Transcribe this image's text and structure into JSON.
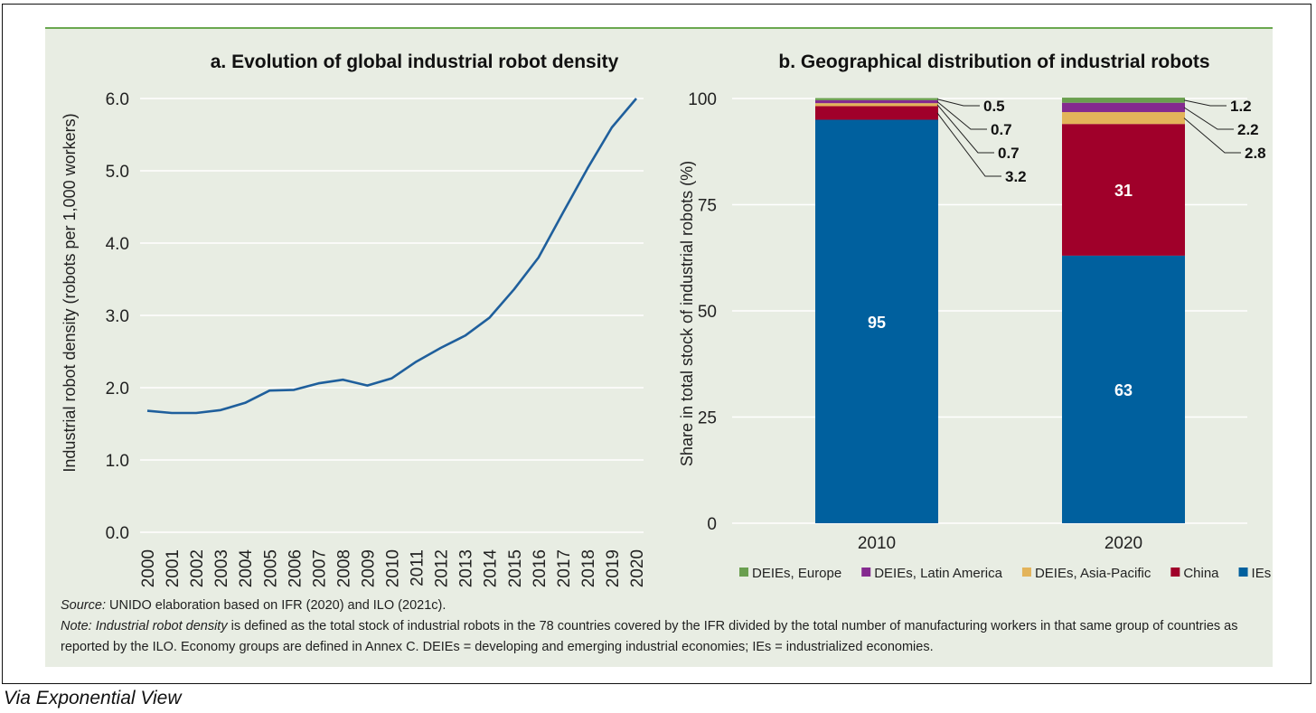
{
  "chart_data": [
    {
      "type": "line",
      "title": "a. Evolution of global industrial robot density",
      "ylabel": "Industrial robot density (robots per 1,000 workers)",
      "xlabel": "",
      "ylim": [
        0,
        6
      ],
      "yticks": [
        "0.0",
        "1.0",
        "2.0",
        "3.0",
        "4.0",
        "5.0",
        "6.0"
      ],
      "x": [
        "2000",
        "2001",
        "2002",
        "2003",
        "2004",
        "2005",
        "2006",
        "2007",
        "2008",
        "2009",
        "2010",
        "2011",
        "2012",
        "2013",
        "2014",
        "2015",
        "2016",
        "2017",
        "2018",
        "2019",
        "2020"
      ],
      "series": [
        {
          "values": [
            1.68,
            1.65,
            1.65,
            1.69,
            1.79,
            1.96,
            1.97,
            2.06,
            2.11,
            2.03,
            2.13,
            2.36,
            2.55,
            2.72,
            2.97,
            3.36,
            3.8,
            4.42,
            5.03,
            5.6,
            6.0
          ],
          "color": "#1f5f9c"
        }
      ],
      "grid": true,
      "grid_axis": "y"
    },
    {
      "type": "bar",
      "stacked": true,
      "title": "b. Geographical distribution of industrial robots",
      "ylabel": "Share in total stock of industrial robots (%)",
      "xlabel": "",
      "ylim": [
        0,
        100
      ],
      "yticks": [
        "0",
        "25",
        "50",
        "75",
        "100"
      ],
      "categories": [
        "2010",
        "2020"
      ],
      "series": [
        {
          "name": "IEs",
          "color": "#00609e",
          "values": [
            95,
            63
          ],
          "labels": [
            "95",
            "63"
          ]
        },
        {
          "name": "China",
          "color": "#a0002a",
          "values": [
            3.2,
            31
          ],
          "labels": [
            "3.2",
            "31"
          ]
        },
        {
          "name": "DEIEs, Asia-Pacific",
          "color": "#e3b45a",
          "values": [
            0.7,
            2.8
          ],
          "labels": [
            "0.7",
            "2.8"
          ]
        },
        {
          "name": "DEIEs, Latin America",
          "color": "#842a8f",
          "values": [
            0.7,
            2.2
          ],
          "labels": [
            "0.7",
            "2.2"
          ]
        },
        {
          "name": "DEIEs, Europe",
          "color": "#6a9f4f",
          "values": [
            0.5,
            1.2
          ],
          "labels": [
            "0.5",
            "1.2"
          ]
        }
      ],
      "legend_order": [
        "DEIEs, Europe",
        "DEIEs, Latin America",
        "DEIEs, Asia-Pacific",
        "China",
        "IEs"
      ],
      "legend": "bottom",
      "grid": true,
      "grid_axis": "y"
    }
  ],
  "notes": {
    "source_label": "Source:",
    "source_text": " UNIDO elaboration based on IFR (2020) and ILO (2021c).",
    "note_label": "Note:",
    "note_term": " Industrial robot density",
    "note_text": " is defined as the total stock of industrial robots in the 78 countries covered by the IFR divided by the total number of manufacturing workers in that same group of countries as reported by the ILO. Economy groups are defined in Annex C. DEIEs = developing and emerging industrial economies; IEs = industrialized economies."
  },
  "via": "Via Exponential View",
  "colors": {
    "panel_bg": "#e8ede3",
    "panel_rule": "#6aa84f",
    "gridline": "#ffffff"
  }
}
